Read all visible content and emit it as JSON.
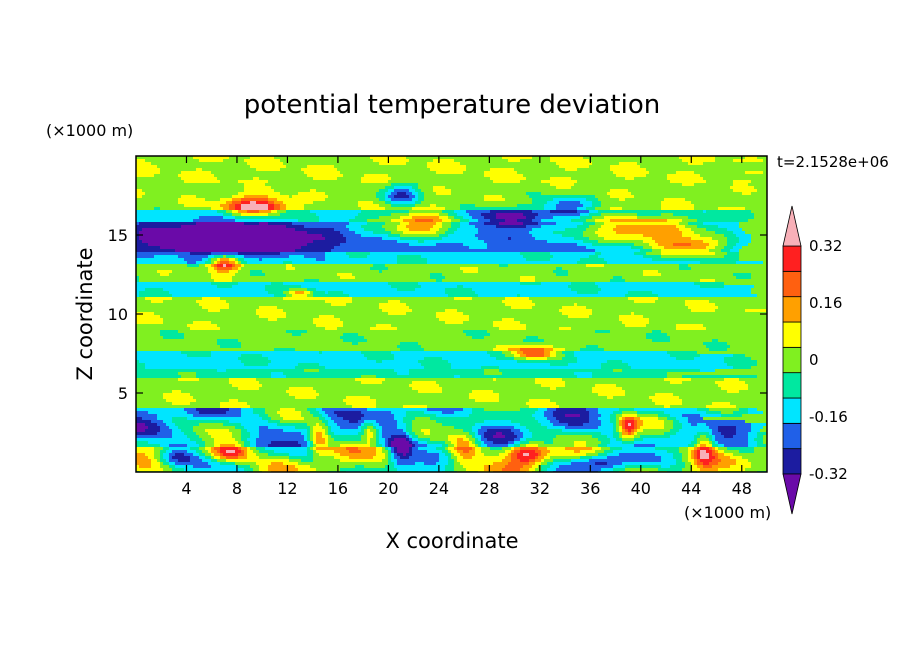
{
  "chart_data": {
    "type": "heatmap",
    "title": "potential temperature deviation",
    "xlabel": "X coordinate",
    "ylabel": "Z coordinate",
    "x_unit": "(×1000 m)",
    "y_unit": "(×1000 m)",
    "time_label": "t=2.1528e+06",
    "xlim": [
      0,
      50
    ],
    "ylim": [
      0,
      20
    ],
    "x_ticks": [
      4,
      8,
      12,
      16,
      20,
      24,
      28,
      32,
      36,
      40,
      44,
      48
    ],
    "y_ticks": [
      5,
      10,
      15
    ],
    "colorbar": {
      "levels": [
        -0.4,
        -0.32,
        -0.24,
        -0.16,
        -0.08,
        0,
        0.08,
        0.16,
        0.24,
        0.32,
        0.4
      ],
      "tick_labels": [
        "0.32",
        "0.16",
        "0",
        "-0.16",
        "-0.32"
      ],
      "tick_values": [
        0.32,
        0.16,
        0,
        -0.16,
        -0.32
      ],
      "colors": [
        "#6a0aa8",
        "#1c1ca0",
        "#2060e8",
        "#00e5ff",
        "#00e8a0",
        "#80f020",
        "#ffff00",
        "#ffa000",
        "#ff6010",
        "#ff2020",
        "#f8b0b8"
      ],
      "extend": "both"
    },
    "horizontal_bands": [
      {
        "z0": 0,
        "z1": 1.5,
        "value": 0.02
      },
      {
        "z0": 1.5,
        "z1": 3.5,
        "value": -0.1
      },
      {
        "z0": 3.5,
        "z1": 4.0,
        "value": -0.12
      },
      {
        "z0": 4.0,
        "z1": 6.0,
        "value": 0.06
      },
      {
        "z0": 6.0,
        "z1": 6.6,
        "value": -0.04
      },
      {
        "z0": 6.6,
        "z1": 7.6,
        "value": -0.1
      },
      {
        "z0": 7.6,
        "z1": 9.0,
        "value": 0.03
      },
      {
        "z0": 9.0,
        "z1": 11.0,
        "value": 0.06
      },
      {
        "z0": 11.0,
        "z1": 12.0,
        "value": -0.1
      },
      {
        "z0": 12.0,
        "z1": 13.2,
        "value": 0.04
      },
      {
        "z0": 13.2,
        "z1": 14.0,
        "value": -0.1
      },
      {
        "z0": 14.0,
        "z1": 15.8,
        "value": -0.2
      },
      {
        "z0": 15.8,
        "z1": 16.6,
        "value": -0.1
      },
      {
        "z0": 16.6,
        "z1": 18.2,
        "value": 0.05
      },
      {
        "z0": 18.2,
        "z1": 20.0,
        "value": 0.07
      }
    ],
    "features": [
      {
        "x": 6,
        "z": 14.8,
        "sx": 5,
        "sz": 0.9,
        "value": -0.36
      },
      {
        "x": 9,
        "z": 14.6,
        "sx": 5,
        "sz": 0.8,
        "value": -0.3
      },
      {
        "x": 21,
        "z": 17.5,
        "sx": 1.5,
        "sz": 0.7,
        "value": -0.28
      },
      {
        "x": 29,
        "z": 16.1,
        "sx": 3,
        "sz": 0.6,
        "value": -0.26
      },
      {
        "x": 34,
        "z": 16.8,
        "sx": 2,
        "sz": 0.6,
        "value": -0.3
      },
      {
        "x": 9.5,
        "z": 16.8,
        "sx": 2.4,
        "sz": 0.6,
        "value": 0.42
      },
      {
        "x": 22.5,
        "z": 15.6,
        "sx": 3.5,
        "sz": 0.8,
        "value": 0.42
      },
      {
        "x": 40,
        "z": 15.3,
        "sx": 5.5,
        "sz": 0.9,
        "value": 0.43
      },
      {
        "x": 44,
        "z": 14.3,
        "sx": 3,
        "sz": 0.6,
        "value": 0.4
      },
      {
        "x": 7,
        "z": 13.2,
        "sx": 1.2,
        "sz": 0.5,
        "value": 0.4
      },
      {
        "x": 13,
        "z": 11.3,
        "sx": 1,
        "sz": 0.3,
        "value": 0.3
      },
      {
        "x": 31.5,
        "z": 7.5,
        "sx": 1.8,
        "sz": 0.4,
        "value": 0.42
      },
      {
        "x": 7.5,
        "z": 1.2,
        "sx": 1.5,
        "sz": 0.6,
        "value": 0.38
      },
      {
        "x": 21,
        "z": 1.5,
        "sx": 1,
        "sz": 1.2,
        "value": -0.36
      },
      {
        "x": 31,
        "z": 1.2,
        "sx": 1.5,
        "sz": 0.8,
        "value": 0.36
      },
      {
        "x": 36.5,
        "z": 0.6,
        "sx": 2.5,
        "sz": 0.5,
        "value": -0.3
      },
      {
        "x": 39,
        "z": 2.8,
        "sx": 0.8,
        "sz": 0.8,
        "value": 0.42
      },
      {
        "x": 45,
        "z": 1.6,
        "sx": 0.8,
        "sz": 1.2,
        "value": 0.3
      },
      {
        "x": 3,
        "z": 1.0,
        "sx": 1.5,
        "sz": 0.7,
        "value": -0.28
      },
      {
        "x": 14.5,
        "z": 2.2,
        "sx": 0.8,
        "sz": 1.0,
        "value": 0.35
      },
      {
        "x": 18.5,
        "z": 2.6,
        "sx": 0.7,
        "sz": 0.8,
        "value": 0.3
      },
      {
        "x": 26,
        "z": 1.6,
        "sx": 1.2,
        "sz": 1.0,
        "value": 0.25
      }
    ]
  }
}
